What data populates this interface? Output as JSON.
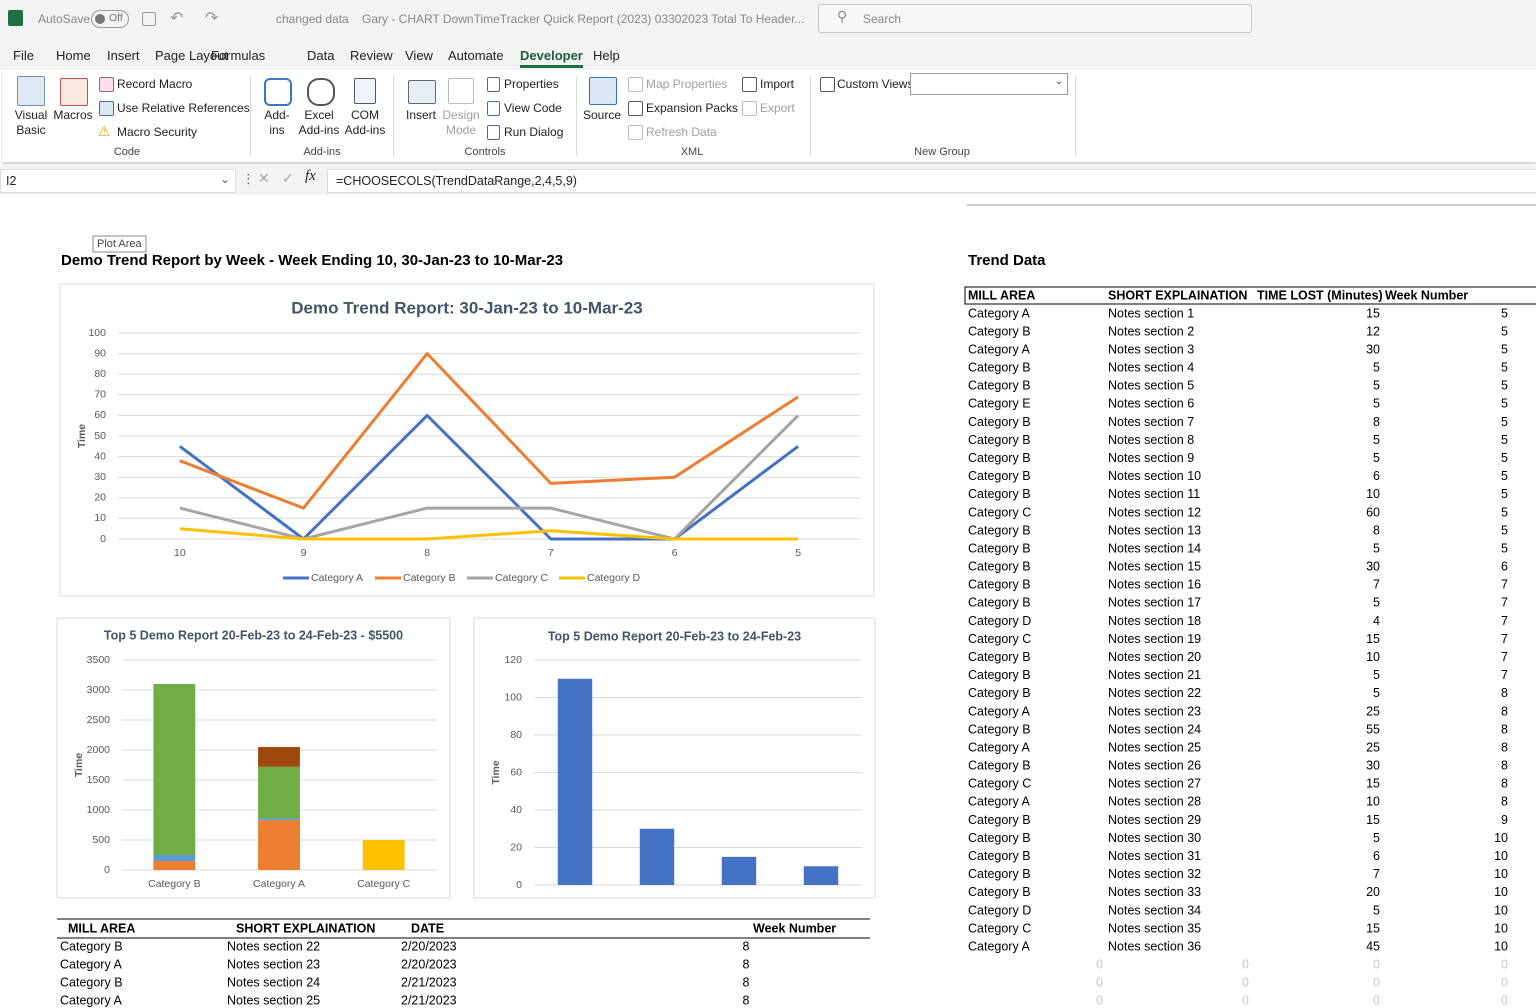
{
  "title_bar": {
    "autosave": "AutoSave",
    "toggle": "Off",
    "status": "changed data",
    "file_name": "Gary - CHART  DownTimeTracker Quick Report  (2023)  03302023  Total To Header...",
    "search": "Search"
  },
  "menu_tabs": [
    "File",
    "Home",
    "Insert",
    "Page Layout",
    "Formulas",
    "Data",
    "Review",
    "View",
    "Automate",
    "Developer",
    "Help"
  ],
  "ribbon": {
    "groups": [
      {
        "label": "Code",
        "items": [
          "Visual Basic",
          "Macros",
          "Record Macro",
          "Use Relative References",
          "Macro Security"
        ]
      },
      {
        "label": "Add-ins",
        "items": [
          "Add-ins",
          "Excel Add-ins",
          "COM Add-ins"
        ]
      },
      {
        "label": "Controls",
        "items": [
          "Insert",
          "Design Mode",
          "Properties",
          "View Code",
          "Run Dialog"
        ]
      },
      {
        "label": "XML",
        "items": [
          "Source",
          "Map Properties",
          "Expansion Packs",
          "Refresh Data",
          "Import",
          "Export"
        ]
      },
      {
        "label": "New Group",
        "items": [
          "Custom Views"
        ]
      }
    ]
  },
  "formula_bar": {
    "name_box": "I2",
    "formula": "=CHOOSECOLS(TrendDataRange,2,4,5,9)"
  },
  "sheet": {
    "tooltip": "Plot Area",
    "report_title": "Demo Trend Report by Week - Week Ending 10, 30-Jan-23  to 10-Mar-23",
    "trend_title": "Trend Data"
  },
  "chart_data": [
    {
      "type": "line",
      "title": "Demo Trend Report: 30-Jan-23 to 10-Mar-23",
      "y_label": "Time",
      "categories": [
        "10",
        "9",
        "8",
        "7",
        "6",
        "5"
      ],
      "series": [
        {
          "name": "Category A",
          "color": "#4472c4",
          "values": [
            45,
            0,
            60,
            0,
            0,
            45
          ]
        },
        {
          "name": "Category B",
          "color": "#ed7d31",
          "values": [
            38,
            15,
            90,
            27,
            30,
            69
          ]
        },
        {
          "name": "Category C",
          "color": "#a5a5a5",
          "values": [
            15,
            0,
            15,
            15,
            0,
            60
          ]
        },
        {
          "name": "Category D",
          "color": "#ffc000",
          "values": [
            5,
            0,
            0,
            4,
            0,
            0
          ]
        }
      ],
      "ylim": [
        0,
        100
      ],
      "yticks": [
        0,
        10,
        20,
        30,
        40,
        50,
        60,
        70,
        80,
        90,
        100
      ],
      "grid": true,
      "legend": "bottom"
    },
    {
      "type": "bar",
      "stacked": true,
      "title": "Top 5 Demo Report 20-Feb-23 to 24-Feb-23 - $5500",
      "y_label": "Time",
      "categories": [
        "Category B",
        "Category A",
        "Category C"
      ],
      "series": [
        {
          "color": "#ed7d31",
          "values": [
            150,
            830,
            null
          ]
        },
        {
          "color": "#5b9bd5",
          "values": [
            100,
            30,
            null
          ]
        },
        {
          "color": "#70ad47",
          "values": [
            2850,
            860,
            null
          ]
        },
        {
          "color": "#9e480e",
          "values": [
            null,
            330,
            null
          ]
        },
        {
          "color": "#ffc000",
          "values": [
            null,
            null,
            500
          ]
        }
      ],
      "ylim": [
        0,
        3500
      ],
      "yticks": [
        0,
        500,
        1000,
        1500,
        2000,
        2500,
        3000,
        3500
      ],
      "grid": true
    },
    {
      "type": "bar",
      "title": "Top 5 Demo Report 20-Feb-23 to 24-Feb-23",
      "y_label": "Time",
      "categories": [
        null,
        null,
        null,
        null
      ],
      "series": [
        {
          "color": "#4472c4",
          "values": [
            110,
            30,
            15,
            10
          ]
        }
      ],
      "ylim": [
        0,
        120
      ],
      "yticks": [
        0,
        20,
        40,
        60,
        80,
        100,
        120
      ],
      "grid": true
    }
  ],
  "top5_table": {
    "columns": [
      "MILL AREA",
      "SHORT EXPLAINATION",
      "DATE",
      "Week Number"
    ],
    "rows": [
      [
        "Category B",
        "Notes section 22",
        "2/20/2023",
        8
      ],
      [
        "Category A",
        "Notes section 23",
        "2/20/2023",
        8
      ],
      [
        "Category B",
        "Notes section 24",
        "2/21/2023",
        8
      ],
      [
        "Category A",
        "Notes section 25",
        "2/21/2023",
        8
      ]
    ]
  },
  "trend_table": {
    "columns": [
      "MILL AREA",
      "SHORT EXPLAINATION",
      "TIME LOST (Minutes)",
      "Week Number"
    ],
    "rows": [
      [
        "Category A",
        "Notes section 1",
        15,
        5
      ],
      [
        "Category B",
        "Notes section 2",
        12,
        5
      ],
      [
        "Category A",
        "Notes section 3",
        30,
        5
      ],
      [
        "Category B",
        "Notes section 4",
        5,
        5
      ],
      [
        "Category B",
        "Notes section 5",
        5,
        5
      ],
      [
        "Category E",
        "Notes section 6",
        5,
        5
      ],
      [
        "Category B",
        "Notes section 7",
        8,
        5
      ],
      [
        "Category B",
        "Notes section 8",
        5,
        5
      ],
      [
        "Category B",
        "Notes section 9",
        5,
        5
      ],
      [
        "Category B",
        "Notes section 10",
        6,
        5
      ],
      [
        "Category B",
        "Notes section 11",
        10,
        5
      ],
      [
        "Category C",
        "Notes section 12",
        60,
        5
      ],
      [
        "Category B",
        "Notes section 13",
        8,
        5
      ],
      [
        "Category B",
        "Notes section 14",
        5,
        5
      ],
      [
        "Category B",
        "Notes section 15",
        30,
        6
      ],
      [
        "Category B",
        "Notes section 16",
        7,
        7
      ],
      [
        "Category B",
        "Notes section 17",
        5,
        7
      ],
      [
        "Category D",
        "Notes section 18",
        4,
        7
      ],
      [
        "Category C",
        "Notes section 19",
        15,
        7
      ],
      [
        "Category B",
        "Notes section 20",
        10,
        7
      ],
      [
        "Category B",
        "Notes section 21",
        5,
        7
      ],
      [
        "Category B",
        "Notes section 22",
        5,
        8
      ],
      [
        "Category A",
        "Notes section 23",
        25,
        8
      ],
      [
        "Category B",
        "Notes section 24",
        55,
        8
      ],
      [
        "Category A",
        "Notes section 25",
        25,
        8
      ],
      [
        "Category B",
        "Notes section 26",
        30,
        8
      ],
      [
        "Category C",
        "Notes section 27",
        15,
        8
      ],
      [
        "Category A",
        "Notes section 28",
        10,
        8
      ],
      [
        "Category B",
        "Notes section 29",
        15,
        9
      ],
      [
        "Category B",
        "Notes section 30",
        5,
        10
      ],
      [
        "Category B",
        "Notes section 31",
        6,
        10
      ],
      [
        "Category B",
        "Notes section 32",
        7,
        10
      ],
      [
        "Category B",
        "Notes section 33",
        20,
        10
      ],
      [
        "Category D",
        "Notes section 34",
        5,
        10
      ],
      [
        "Category C",
        "Notes section 35",
        15,
        10
      ],
      [
        "Category A",
        "Notes section 36",
        45,
        10
      ]
    ],
    "blank_rows": [
      [
        0,
        0,
        0,
        0
      ],
      [
        0,
        0,
        0,
        0
      ],
      [
        0,
        0,
        0,
        0
      ]
    ]
  }
}
